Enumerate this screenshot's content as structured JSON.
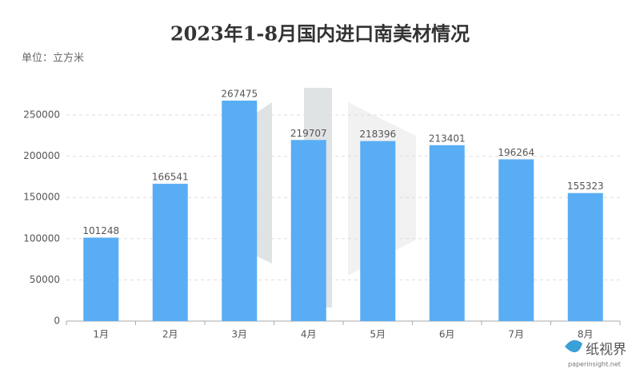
{
  "chart_data": {
    "type": "bar",
    "title": "2023年1-8月国内进口南美材情况",
    "subtitle": "单位：立方米",
    "categories": [
      "1月",
      "2月",
      "3月",
      "4月",
      "5月",
      "6月",
      "7月",
      "8月"
    ],
    "values": [
      101248,
      166541,
      267475,
      219707,
      218396,
      213401,
      196264,
      155323
    ],
    "color": "#59adf4",
    "ylim": [
      0,
      300000
    ],
    "yticks": [
      0,
      50000,
      100000,
      150000,
      200000,
      250000
    ],
    "grid": true,
    "watermark": {
      "name": "纸视界",
      "url": "paperinsight.net"
    }
  }
}
